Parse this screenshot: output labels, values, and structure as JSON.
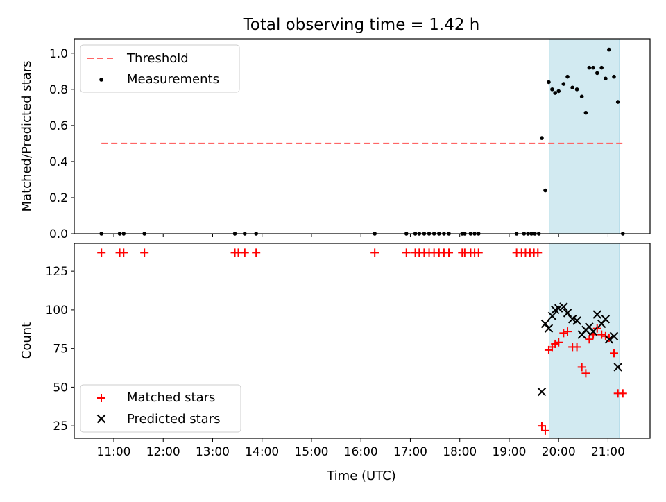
{
  "title": "Total observing time = 1.42 h",
  "xlabel": "Time (UTC)",
  "colors": {
    "threshold": "#ff6666",
    "measurement": "#000000",
    "matched": "#ff0000",
    "predicted": "#000000",
    "window": "#add8e6"
  },
  "chart_data": [
    {
      "type": "scatter",
      "ylabel": "Matched/Predicted stars",
      "ylim": [
        0,
        1.08
      ],
      "yticks": [
        0.0,
        0.2,
        0.4,
        0.6,
        0.8,
        1.0
      ],
      "ytick_labels": [
        "0.0",
        "0.2",
        "0.4",
        "0.6",
        "0.8",
        "1.0"
      ],
      "x_unit": "hours UTC",
      "xlim": [
        10.2,
        21.85
      ],
      "observing_window": [
        19.81,
        21.23
      ],
      "legend": {
        "placement": "upper-left",
        "entries": [
          "Threshold",
          "Measurements"
        ]
      },
      "threshold": {
        "name": "Threshold",
        "value": 0.5,
        "x_range": [
          10.75,
          21.3
        ],
        "style": "dashed"
      },
      "series": [
        {
          "name": "Measurements",
          "points": [
            [
              10.75,
              0.0
            ],
            [
              11.12,
              0.0
            ],
            [
              11.2,
              0.0
            ],
            [
              11.62,
              0.0
            ],
            [
              13.45,
              0.0
            ],
            [
              13.65,
              0.0
            ],
            [
              13.88,
              0.0
            ],
            [
              16.28,
              0.0
            ],
            [
              16.92,
              0.0
            ],
            [
              17.1,
              0.0
            ],
            [
              17.18,
              0.0
            ],
            [
              17.28,
              0.0
            ],
            [
              17.38,
              0.0
            ],
            [
              17.48,
              0.0
            ],
            [
              17.58,
              0.0
            ],
            [
              17.68,
              0.0
            ],
            [
              17.78,
              0.0
            ],
            [
              18.05,
              0.0
            ],
            [
              18.1,
              0.0
            ],
            [
              18.22,
              0.0
            ],
            [
              18.3,
              0.0
            ],
            [
              18.38,
              0.0
            ],
            [
              19.15,
              0.0
            ],
            [
              19.3,
              0.0
            ],
            [
              19.38,
              0.0
            ],
            [
              19.45,
              0.0
            ],
            [
              19.52,
              0.0
            ],
            [
              19.6,
              0.0
            ],
            [
              19.66,
              0.53
            ],
            [
              19.73,
              0.24
            ],
            [
              19.8,
              0.84
            ],
            [
              19.87,
              0.8
            ],
            [
              19.93,
              0.78
            ],
            [
              20.0,
              0.79
            ],
            [
              20.1,
              0.83
            ],
            [
              20.18,
              0.87
            ],
            [
              20.28,
              0.81
            ],
            [
              20.37,
              0.8
            ],
            [
              20.47,
              0.76
            ],
            [
              20.55,
              0.67
            ],
            [
              20.62,
              0.92
            ],
            [
              20.7,
              0.92
            ],
            [
              20.78,
              0.89
            ],
            [
              20.87,
              0.92
            ],
            [
              20.95,
              0.86
            ],
            [
              21.02,
              1.02
            ],
            [
              21.12,
              0.87
            ],
            [
              21.2,
              0.73
            ],
            [
              21.3,
              0.0
            ]
          ]
        }
      ]
    },
    {
      "type": "scatter",
      "ylabel": "Count",
      "ylim": [
        17,
        143
      ],
      "yticks": [
        25,
        50,
        75,
        100,
        125
      ],
      "ytick_labels": [
        "25",
        "50",
        "75",
        "100",
        "125"
      ],
      "x_unit": "hours UTC",
      "xlim": [
        10.2,
        21.85
      ],
      "xticks": [
        11,
        12,
        13,
        14,
        15,
        16,
        17,
        18,
        19,
        20,
        21
      ],
      "xtick_labels": [
        "11:00",
        "12:00",
        "13:00",
        "14:00",
        "15:00",
        "16:00",
        "17:00",
        "18:00",
        "19:00",
        "20:00",
        "21:00"
      ],
      "observing_window": [
        19.81,
        21.23
      ],
      "legend": {
        "placement": "lower-left",
        "entries": [
          "Matched stars",
          "Predicted stars"
        ]
      },
      "series": [
        {
          "name": "Matched stars",
          "marker": "+",
          "points": [
            [
              10.75,
              137
            ],
            [
              11.12,
              137
            ],
            [
              11.2,
              137
            ],
            [
              11.62,
              137
            ],
            [
              13.45,
              137
            ],
            [
              13.52,
              137
            ],
            [
              13.65,
              137
            ],
            [
              13.88,
              137
            ],
            [
              16.28,
              137
            ],
            [
              16.92,
              137
            ],
            [
              17.1,
              137
            ],
            [
              17.18,
              137
            ],
            [
              17.28,
              137
            ],
            [
              17.38,
              137
            ],
            [
              17.48,
              137
            ],
            [
              17.58,
              137
            ],
            [
              17.68,
              137
            ],
            [
              17.78,
              137
            ],
            [
              18.05,
              137
            ],
            [
              18.1,
              137
            ],
            [
              18.22,
              137
            ],
            [
              18.3,
              137
            ],
            [
              18.38,
              137
            ],
            [
              19.15,
              137
            ],
            [
              19.25,
              137
            ],
            [
              19.33,
              137
            ],
            [
              19.42,
              137
            ],
            [
              19.5,
              137
            ],
            [
              19.58,
              137
            ],
            [
              19.66,
              25
            ],
            [
              19.73,
              22
            ],
            [
              19.8,
              74
            ],
            [
              19.87,
              76
            ],
            [
              19.93,
              78
            ],
            [
              20.0,
              79
            ],
            [
              20.1,
              85
            ],
            [
              20.18,
              86
            ],
            [
              20.28,
              76
            ],
            [
              20.37,
              76
            ],
            [
              20.47,
              63
            ],
            [
              20.55,
              59
            ],
            [
              20.62,
              81
            ],
            [
              20.7,
              84
            ],
            [
              20.78,
              88
            ],
            [
              20.87,
              84
            ],
            [
              20.95,
              83
            ],
            [
              21.02,
              82
            ],
            [
              21.12,
              72
            ],
            [
              21.2,
              46
            ],
            [
              21.3,
              46
            ]
          ]
        },
        {
          "name": "Predicted stars",
          "marker": "x",
          "points": [
            [
              19.66,
              47
            ],
            [
              19.73,
              91
            ],
            [
              19.8,
              88
            ],
            [
              19.87,
              96
            ],
            [
              19.93,
              100
            ],
            [
              20.0,
              101
            ],
            [
              20.1,
              102
            ],
            [
              20.18,
              98
            ],
            [
              20.28,
              94
            ],
            [
              20.37,
              93
            ],
            [
              20.47,
              84
            ],
            [
              20.55,
              87
            ],
            [
              20.62,
              89
            ],
            [
              20.7,
              86
            ],
            [
              20.78,
              97
            ],
            [
              20.87,
              91
            ],
            [
              20.95,
              94
            ],
            [
              21.02,
              81
            ],
            [
              21.12,
              83
            ],
            [
              21.2,
              63
            ]
          ]
        }
      ]
    }
  ]
}
